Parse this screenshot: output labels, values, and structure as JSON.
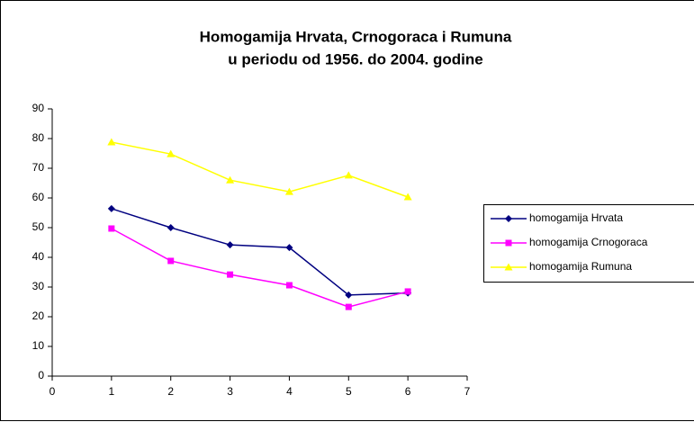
{
  "chart_data": {
    "type": "line",
    "title": [
      "Homogamija Hrvata, Crnogoraca i Rumuna",
      "u periodu od 1956. do 2004. godine"
    ],
    "x": [
      1,
      2,
      3,
      4,
      5,
      6
    ],
    "xlim": [
      0,
      7
    ],
    "xticks": [
      0,
      1,
      2,
      3,
      4,
      5,
      6,
      7
    ],
    "ylim": [
      0,
      90
    ],
    "yticks": [
      0,
      10,
      20,
      30,
      40,
      50,
      60,
      70,
      80,
      90
    ],
    "legend": "right",
    "series": [
      {
        "name": "homogamija Hrvata",
        "color": "#000080",
        "marker": "diamond",
        "values": [
          56.4,
          50,
          44.2,
          43.3,
          27.3,
          28
        ]
      },
      {
        "name": "homogamija Crnogoraca",
        "color": "#ff00ff",
        "marker": "square",
        "values": [
          49.7,
          38.8,
          34.2,
          30.6,
          23.3,
          28.5
        ]
      },
      {
        "name": "homogamija Rumuna",
        "color": "#ffff00",
        "marker": "triangle",
        "values": [
          78.8,
          74.8,
          66,
          62.1,
          67.6,
          60.3
        ]
      }
    ]
  }
}
